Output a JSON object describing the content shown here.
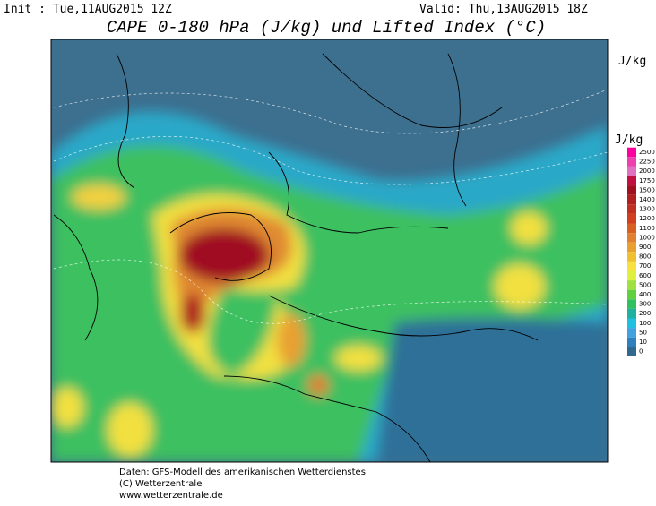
{
  "header": {
    "init": "Init : Tue,11AUG2015 12Z",
    "valid": "Valid: Thu,13AUG2015 18Z",
    "title": "CAPE 0-180 hPa (J/kg) und Lifted Index (°C)",
    "unit": "J/kg"
  },
  "legend": {
    "unit": "J/kg",
    "labels": [
      2500,
      2250,
      2000,
      1750,
      1500,
      1400,
      1300,
      1200,
      1100,
      1000,
      900,
      800,
      700,
      600,
      500,
      400,
      300,
      200,
      100,
      50,
      10,
      0
    ],
    "colors": [
      "#ff00a0",
      "#f040b0",
      "#e070c0",
      "#c01040",
      "#a01020",
      "#b02020",
      "#c03020",
      "#d04020",
      "#d86020",
      "#e08030",
      "#e8a030",
      "#f0c030",
      "#f8e040",
      "#e0f040",
      "#a0e040",
      "#60d040",
      "#30c060",
      "#20b0a0",
      "#20c0e0",
      "#40a0e0",
      "#3080c0",
      "#306890"
    ]
  },
  "footer": [
    "Daten: GFS-Modell des amerikanischen Wetterdienstes",
    "(C) Wetterzentrale",
    "www.wetterzentrale.de"
  ]
}
